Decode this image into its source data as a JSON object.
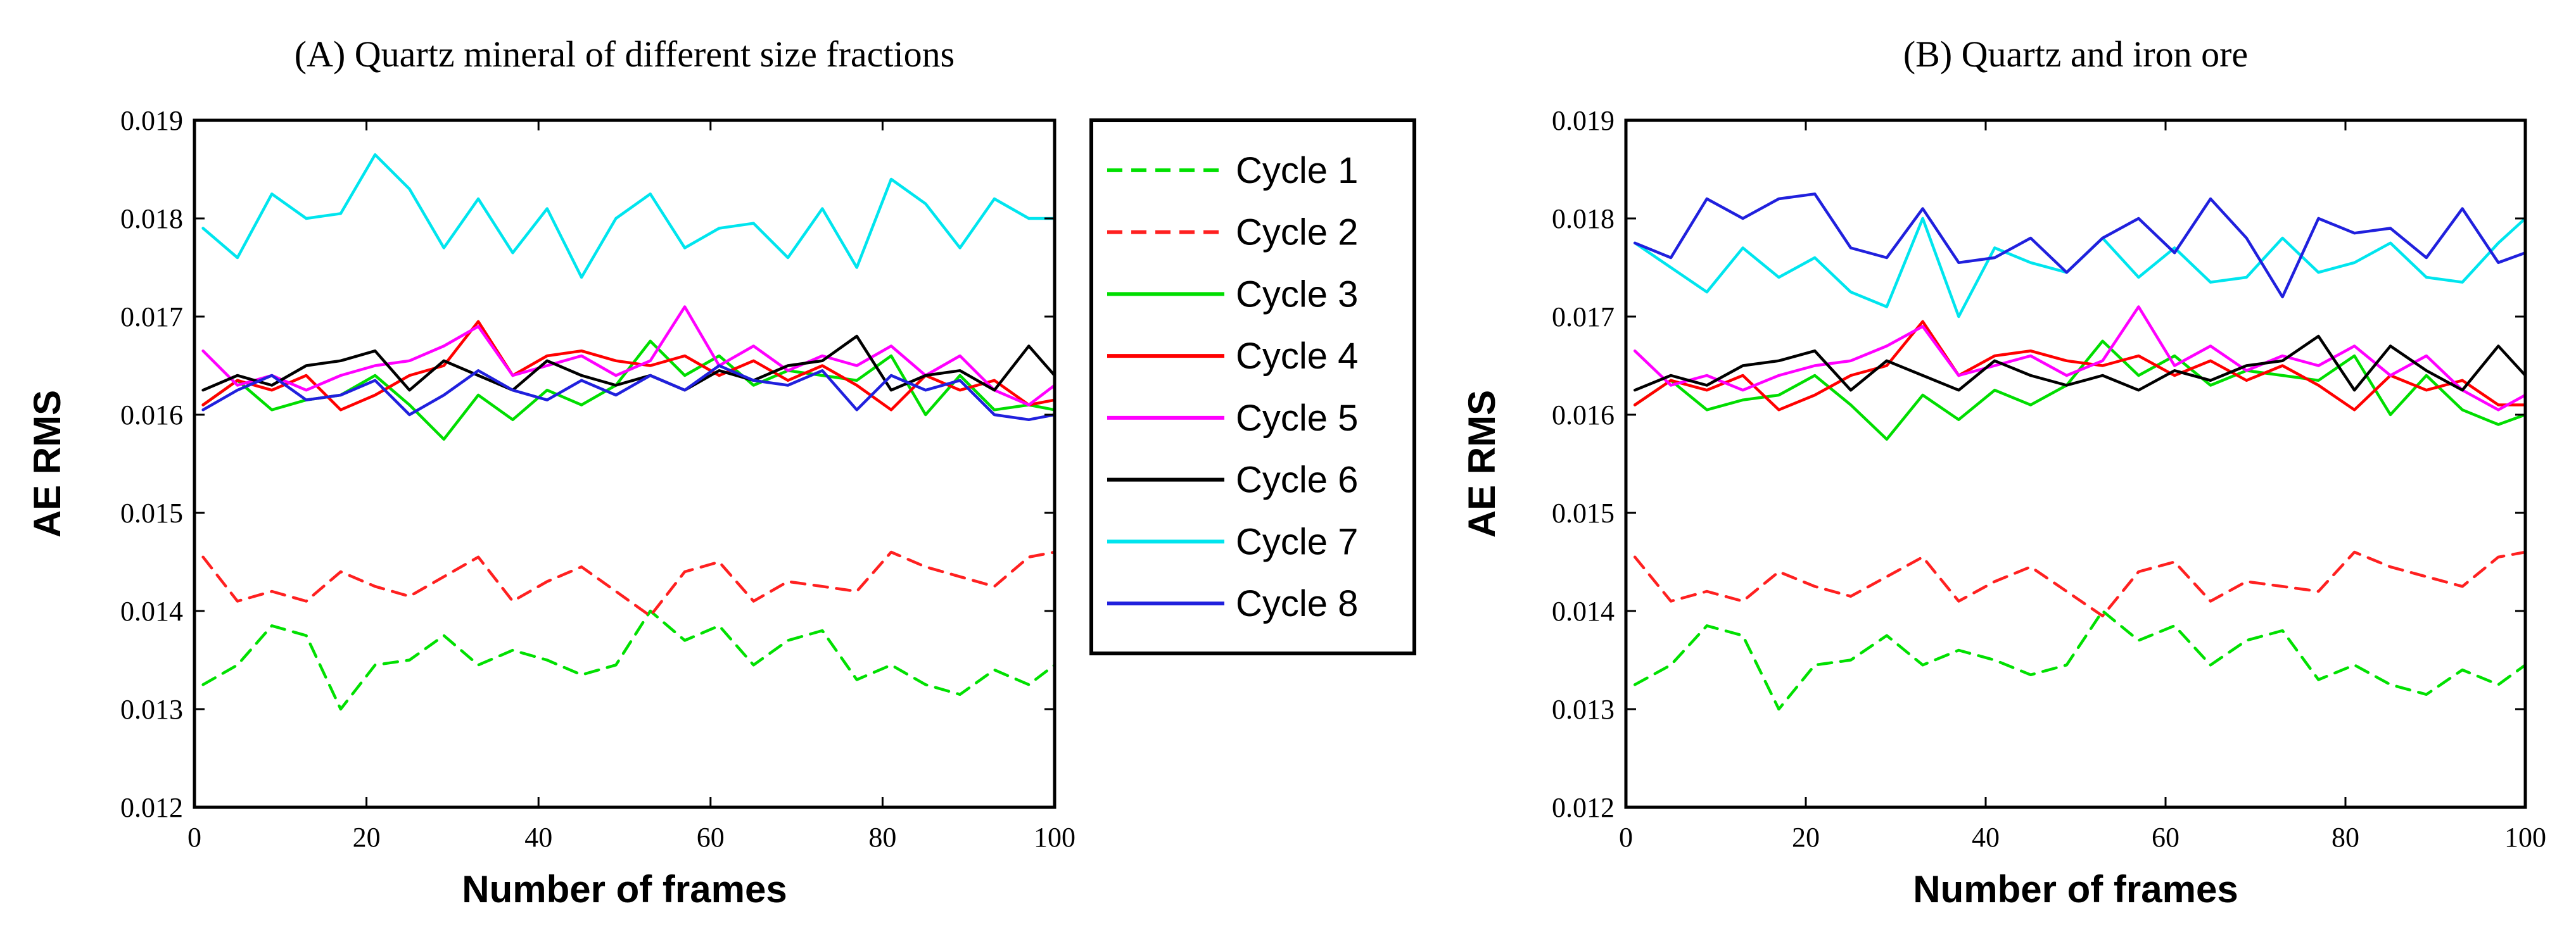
{
  "chart_data": [
    {
      "type": "line",
      "title": "(A) Quartz mineral of different size fractions",
      "xlabel": "Number of frames",
      "ylabel": "AE RMS",
      "xlim": [
        0,
        100
      ],
      "ylim": [
        0.012,
        0.019
      ],
      "xticks": [
        "0",
        "20",
        "40",
        "60",
        "80",
        "100"
      ],
      "yticks": [
        "0.012",
        "0.013",
        "0.014",
        "0.015",
        "0.016",
        "0.017",
        "0.018",
        "0.019"
      ],
      "x": [
        1,
        5,
        9,
        13,
        17,
        21,
        25,
        29,
        33,
        37,
        41,
        45,
        49,
        53,
        57,
        61,
        65,
        69,
        73,
        77,
        81,
        85,
        89,
        93,
        97,
        100
      ],
      "series": [
        {
          "name": "Cycle 1",
          "color": "#00e000",
          "dash": "dashed",
          "values": [
            0.01325,
            0.01345,
            0.01385,
            0.01375,
            0.013,
            0.01345,
            0.0135,
            0.01375,
            0.01345,
            0.0136,
            0.0135,
            0.01335,
            0.01345,
            0.014,
            0.0137,
            0.01385,
            0.01345,
            0.0137,
            0.0138,
            0.0133,
            0.01345,
            0.01325,
            0.01315,
            0.0134,
            0.01325,
            0.01345
          ]
        },
        {
          "name": "Cycle 2",
          "color": "#ff2020",
          "dash": "dashed",
          "values": [
            0.01455,
            0.0141,
            0.0142,
            0.0141,
            0.0144,
            0.01425,
            0.01415,
            0.01435,
            0.01455,
            0.0141,
            0.0143,
            0.01445,
            0.0142,
            0.01395,
            0.0144,
            0.0145,
            0.0141,
            0.0143,
            0.01425,
            0.0142,
            0.0146,
            0.01445,
            0.01435,
            0.01425,
            0.01455,
            0.0146
          ]
        },
        {
          "name": "Cycle 3",
          "color": "#00dd00",
          "dash": "solid",
          "values": [
            0.0161,
            0.01635,
            0.01605,
            0.01615,
            0.0162,
            0.0164,
            0.0161,
            0.01575,
            0.0162,
            0.01595,
            0.01625,
            0.0161,
            0.0163,
            0.01675,
            0.0164,
            0.0166,
            0.0163,
            0.01645,
            0.0164,
            0.01635,
            0.0166,
            0.016,
            0.0164,
            0.01605,
            0.0161,
            0.01605
          ]
        },
        {
          "name": "Cycle 4",
          "color": "#ff0000",
          "dash": "solid",
          "values": [
            0.0161,
            0.01635,
            0.01625,
            0.0164,
            0.01605,
            0.0162,
            0.0164,
            0.0165,
            0.01695,
            0.0164,
            0.0166,
            0.01665,
            0.01655,
            0.0165,
            0.0166,
            0.0164,
            0.01655,
            0.01635,
            0.0165,
            0.0163,
            0.01605,
            0.0164,
            0.01625,
            0.01635,
            0.0161,
            0.01615
          ]
        },
        {
          "name": "Cycle 5",
          "color": "#ff00ff",
          "dash": "solid",
          "values": [
            0.01665,
            0.0163,
            0.0164,
            0.01625,
            0.0164,
            0.0165,
            0.01655,
            0.0167,
            0.0169,
            0.0164,
            0.0165,
            0.0166,
            0.0164,
            0.01655,
            0.0171,
            0.0165,
            0.0167,
            0.01645,
            0.0166,
            0.0165,
            0.0167,
            0.0164,
            0.0166,
            0.01625,
            0.0161,
            0.0163
          ]
        },
        {
          "name": "Cycle 6",
          "color": "#000000",
          "dash": "solid",
          "values": [
            0.01625,
            0.0164,
            0.0163,
            0.0165,
            0.01655,
            0.01665,
            0.01625,
            0.01655,
            0.0164,
            0.01625,
            0.01655,
            0.0164,
            0.0163,
            0.0164,
            0.01625,
            0.01645,
            0.01635,
            0.0165,
            0.01655,
            0.0168,
            0.01625,
            0.0164,
            0.01645,
            0.01625,
            0.0167,
            0.0164
          ]
        },
        {
          "name": "Cycle 7",
          "color": "#00e5ee",
          "dash": "solid",
          "values": [
            0.0179,
            0.0176,
            0.01825,
            0.018,
            0.01805,
            0.01865,
            0.0183,
            0.0177,
            0.0182,
            0.01765,
            0.0181,
            0.0174,
            0.018,
            0.01825,
            0.0177,
            0.0179,
            0.01795,
            0.0176,
            0.0181,
            0.0175,
            0.0184,
            0.01815,
            0.0177,
            0.0182,
            0.018,
            0.018
          ]
        },
        {
          "name": "Cycle 8",
          "color": "#2020dd",
          "dash": "solid",
          "values": [
            0.01605,
            0.01625,
            0.0164,
            0.01615,
            0.0162,
            0.01635,
            0.016,
            0.0162,
            0.01645,
            0.01625,
            0.01615,
            0.01635,
            0.0162,
            0.0164,
            0.01625,
            0.0165,
            0.01635,
            0.0163,
            0.01645,
            0.01605,
            0.0164,
            0.01625,
            0.01635,
            0.016,
            0.01595,
            0.016
          ]
        }
      ]
    },
    {
      "type": "line",
      "title": "(B) Quartz and iron ore",
      "xlabel": "Number of frames",
      "ylabel": "AE RMS",
      "xlim": [
        0,
        100
      ],
      "ylim": [
        0.012,
        0.019
      ],
      "xticks": [
        "0",
        "20",
        "40",
        "60",
        "80",
        "100"
      ],
      "yticks": [
        "0.012",
        "0.013",
        "0.014",
        "0.015",
        "0.016",
        "0.017",
        "0.018",
        "0.019"
      ],
      "x": [
        1,
        5,
        9,
        13,
        17,
        21,
        25,
        29,
        33,
        37,
        41,
        45,
        49,
        53,
        57,
        61,
        65,
        69,
        73,
        77,
        81,
        85,
        89,
        93,
        97,
        100
      ],
      "series": [
        {
          "name": "Cycle 1",
          "color": "#00e000",
          "dash": "dashed",
          "values": [
            0.01325,
            0.01345,
            0.01385,
            0.01375,
            0.013,
            0.01345,
            0.0135,
            0.01375,
            0.01345,
            0.0136,
            0.0135,
            0.01335,
            0.01345,
            0.014,
            0.0137,
            0.01385,
            0.01345,
            0.0137,
            0.0138,
            0.0133,
            0.01345,
            0.01325,
            0.01315,
            0.0134,
            0.01325,
            0.01345
          ]
        },
        {
          "name": "Cycle 2",
          "color": "#ff2020",
          "dash": "dashed",
          "values": [
            0.01455,
            0.0141,
            0.0142,
            0.0141,
            0.0144,
            0.01425,
            0.01415,
            0.01435,
            0.01455,
            0.0141,
            0.0143,
            0.01445,
            0.0142,
            0.01395,
            0.0144,
            0.0145,
            0.0141,
            0.0143,
            0.01425,
            0.0142,
            0.0146,
            0.01445,
            0.01435,
            0.01425,
            0.01455,
            0.0146
          ]
        },
        {
          "name": "Cycle 3",
          "color": "#00dd00",
          "dash": "solid",
          "values": [
            0.0161,
            0.01635,
            0.01605,
            0.01615,
            0.0162,
            0.0164,
            0.0161,
            0.01575,
            0.0162,
            0.01595,
            0.01625,
            0.0161,
            0.0163,
            0.01675,
            0.0164,
            0.0166,
            0.0163,
            0.01645,
            0.0164,
            0.01635,
            0.0166,
            0.016,
            0.0164,
            0.01605,
            0.0159,
            0.016
          ]
        },
        {
          "name": "Cycle 4",
          "color": "#ff0000",
          "dash": "solid",
          "values": [
            0.0161,
            0.01635,
            0.01625,
            0.0164,
            0.01605,
            0.0162,
            0.0164,
            0.0165,
            0.01695,
            0.0164,
            0.0166,
            0.01665,
            0.01655,
            0.0165,
            0.0166,
            0.0164,
            0.01655,
            0.01635,
            0.0165,
            0.0163,
            0.01605,
            0.0164,
            0.01625,
            0.01635,
            0.0161,
            0.0161
          ]
        },
        {
          "name": "Cycle 5",
          "color": "#ff00ff",
          "dash": "solid",
          "values": [
            0.01665,
            0.0163,
            0.0164,
            0.01625,
            0.0164,
            0.0165,
            0.01655,
            0.0167,
            0.0169,
            0.0164,
            0.0165,
            0.0166,
            0.0164,
            0.01655,
            0.0171,
            0.0165,
            0.0167,
            0.01645,
            0.0166,
            0.0165,
            0.0167,
            0.0164,
            0.0166,
            0.01625,
            0.01605,
            0.0162
          ]
        },
        {
          "name": "Cycle 6",
          "color": "#000000",
          "dash": "solid",
          "values": [
            0.01625,
            0.0164,
            0.0163,
            0.0165,
            0.01655,
            0.01665,
            0.01625,
            0.01655,
            0.0164,
            0.01625,
            0.01655,
            0.0164,
            0.0163,
            0.0164,
            0.01625,
            0.01645,
            0.01635,
            0.0165,
            0.01655,
            0.0168,
            0.01625,
            0.0167,
            0.01645,
            0.01625,
            0.0167,
            0.0164
          ]
        },
        {
          "name": "Cycle 7",
          "color": "#00e5ee",
          "dash": "solid",
          "values": [
            0.01775,
            0.0175,
            0.01725,
            0.0177,
            0.0174,
            0.0176,
            0.01725,
            0.0171,
            0.018,
            0.017,
            0.0177,
            0.01755,
            0.01745,
            0.0178,
            0.0174,
            0.0177,
            0.01735,
            0.0174,
            0.0178,
            0.01745,
            0.01755,
            0.01775,
            0.0174,
            0.01735,
            0.01775,
            0.018
          ]
        },
        {
          "name": "Cycle 8",
          "color": "#2020dd",
          "dash": "solid",
          "values": [
            0.01775,
            0.0176,
            0.0182,
            0.018,
            0.0182,
            0.01825,
            0.0177,
            0.0176,
            0.0181,
            0.01755,
            0.0176,
            0.0178,
            0.01745,
            0.0178,
            0.018,
            0.01765,
            0.0182,
            0.0178,
            0.0172,
            0.018,
            0.01785,
            0.0179,
            0.0176,
            0.0181,
            0.01755,
            0.01765
          ]
        }
      ]
    }
  ],
  "legend": {
    "entries": [
      "Cycle 1",
      "Cycle 2",
      "Cycle 3",
      "Cycle 4",
      "Cycle 5",
      "Cycle 6",
      "Cycle 7",
      "Cycle 8"
    ],
    "placement": "between-panels"
  }
}
